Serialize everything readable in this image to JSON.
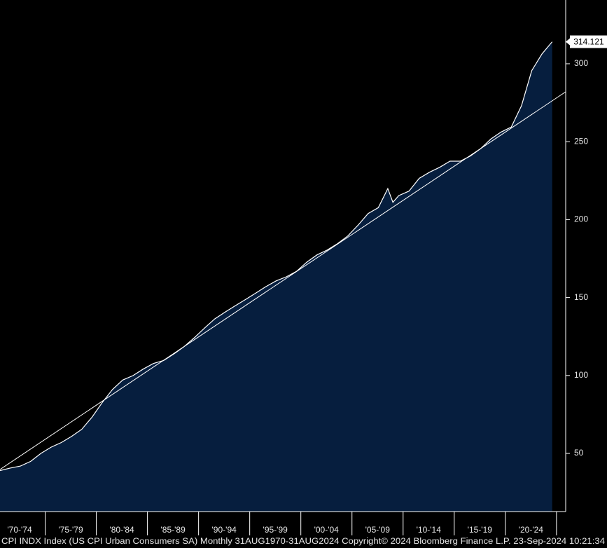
{
  "chart_data": {
    "type": "area",
    "x": [
      1970.58,
      1971.58,
      1972.58,
      1973.58,
      1974.58,
      1975.58,
      1976.58,
      1977.58,
      1978.58,
      1979.58,
      1980.58,
      1981.58,
      1982.58,
      1983.58,
      1984.58,
      1985.58,
      1986.58,
      1987.58,
      1988.58,
      1989.58,
      1990.58,
      1991.58,
      1992.58,
      1993.58,
      1994.58,
      1995.58,
      1996.58,
      1997.58,
      1998.58,
      1999.58,
      2000.58,
      2001.58,
      2002.58,
      2003.58,
      2004.58,
      2005.58,
      2006.58,
      2007.58,
      2008.5,
      2009.0,
      2009.58,
      2010.58,
      2011.58,
      2012.58,
      2013.58,
      2014.58,
      2015.58,
      2016.58,
      2017.58,
      2018.58,
      2019.58,
      2020.58,
      2021.58,
      2022.58,
      2023.58,
      2024.58
    ],
    "series": [
      {
        "color": "#ffffff",
        "fill": "#061e3e",
        "values": [
          39.0,
          40.6,
          41.9,
          44.9,
          50.0,
          54.0,
          57.0,
          60.9,
          65.5,
          73.3,
          82.7,
          91.0,
          97.1,
          99.9,
          104.1,
          107.7,
          109.6,
          113.8,
          118.5,
          124.2,
          130.4,
          136.3,
          140.6,
          144.7,
          148.7,
          152.8,
          157.0,
          160.7,
          163.3,
          166.8,
          172.7,
          177.4,
          180.5,
          184.6,
          189.5,
          196.3,
          203.9,
          207.7,
          219.9,
          211.1,
          215.4,
          218.3,
          226.5,
          230.4,
          233.6,
          237.5,
          237.5,
          240.8,
          245.5,
          251.7,
          256.2,
          259.4,
          273.1,
          295.6,
          306.3,
          314.121
        ]
      }
    ],
    "trend": {
      "color": "#ffffff",
      "x": [
        1970.58,
        2025.9
      ],
      "values": [
        39.7,
        282.0
      ]
    },
    "xlim": [
      1970.58,
      2025.9
    ],
    "xticks": [
      {
        "value": 1972.5,
        "label": "'70-'74"
      },
      {
        "value": 1977.5,
        "label": "'75-'79"
      },
      {
        "value": 1982.5,
        "label": "'80-'84"
      },
      {
        "value": 1987.5,
        "label": "'85-'89"
      },
      {
        "value": 1992.5,
        "label": "'90-'94"
      },
      {
        "value": 1997.5,
        "label": "'95-'99"
      },
      {
        "value": 2002.5,
        "label": "'00-'04"
      },
      {
        "value": 2007.5,
        "label": "'05-'09"
      },
      {
        "value": 2012.5,
        "label": "'10-'14"
      },
      {
        "value": 2017.5,
        "label": "'15-'19"
      },
      {
        "value": 2022.5,
        "label": "'20-'24"
      }
    ],
    "ylim": [
      12.7,
      340.9
    ],
    "yticks": [
      50,
      100,
      150,
      200,
      250,
      300
    ],
    "footer": "CPI INDX Index (US CPI Urban Consumers SA)  Monthly 31AUG1970-31AUG2024  Copyright© 2024 Bloomberg Finance L.P.  23-Sep-2024 10:21:34"
  }
}
